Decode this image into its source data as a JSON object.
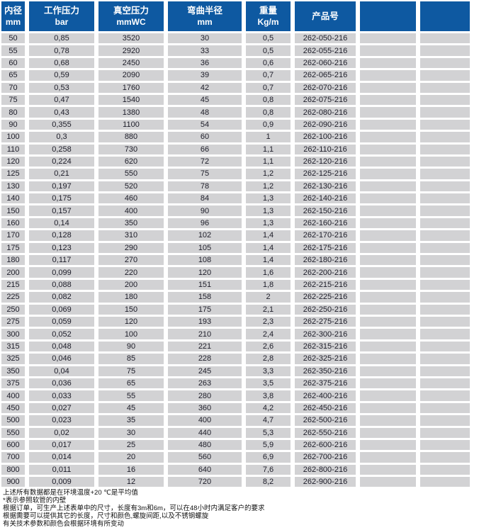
{
  "colors": {
    "header_bg": "#0e59a1",
    "row_bg": "#d2d2d4",
    "header_text": "#ffffff",
    "body_text": "#1c1c28"
  },
  "table": {
    "columns": [
      {
        "line1": "内径",
        "line2": "mm"
      },
      {
        "line1": "工作压力",
        "line2": "bar"
      },
      {
        "line1": "真空压力",
        "line2": "mmWC"
      },
      {
        "line1": "弯曲半径",
        "line2": "mm"
      },
      {
        "line1": "重量",
        "line2": "Kg/m"
      },
      {
        "line1": "产品号",
        "line2": ""
      },
      {
        "line1": "",
        "line2": ""
      },
      {
        "line1": "",
        "line2": ""
      }
    ],
    "rows": [
      [
        "50",
        "0,85",
        "3520",
        "30",
        "0,5",
        "262-050-216",
        "",
        ""
      ],
      [
        "55",
        "0,78",
        "2920",
        "33",
        "0,5",
        "262-055-216",
        "",
        ""
      ],
      [
        "60",
        "0,68",
        "2450",
        "36",
        "0,6",
        "262-060-216",
        "",
        ""
      ],
      [
        "65",
        "0,59",
        "2090",
        "39",
        "0,7",
        "262-065-216",
        "",
        ""
      ],
      [
        "70",
        "0,53",
        "1760",
        "42",
        "0,7",
        "262-070-216",
        "",
        ""
      ],
      [
        "75",
        "0,47",
        "1540",
        "45",
        "0,8",
        "262-075-216",
        "",
        ""
      ],
      [
        "80",
        "0,43",
        "1380",
        "48",
        "0,8",
        "262-080-216",
        "",
        ""
      ],
      [
        "90",
        "0,355",
        "1100",
        "54",
        "0,9",
        "262-090-216",
        "",
        ""
      ],
      [
        "100",
        "0,3",
        "880",
        "60",
        "1",
        "262-100-216",
        "",
        ""
      ],
      [
        "110",
        "0,258",
        "730",
        "66",
        "1,1",
        "262-110-216",
        "",
        ""
      ],
      [
        "120",
        "0,224",
        "620",
        "72",
        "1,1",
        "262-120-216",
        "",
        ""
      ],
      [
        "125",
        "0,21",
        "550",
        "75",
        "1,2",
        "262-125-216",
        "",
        ""
      ],
      [
        "130",
        "0,197",
        "520",
        "78",
        "1,2",
        "262-130-216",
        "",
        ""
      ],
      [
        "140",
        "0,175",
        "460",
        "84",
        "1,3",
        "262-140-216",
        "",
        ""
      ],
      [
        "150",
        "0,157",
        "400",
        "90",
        "1,3",
        "262-150-216",
        "",
        ""
      ],
      [
        "160",
        "0,14",
        "350",
        "96",
        "1,3",
        "262-160-216",
        "",
        ""
      ],
      [
        "170",
        "0,128",
        "310",
        "102",
        "1,4",
        "262-170-216",
        "",
        ""
      ],
      [
        "175",
        "0,123",
        "290",
        "105",
        "1,4",
        "262-175-216",
        "",
        ""
      ],
      [
        "180",
        "0,117",
        "270",
        "108",
        "1,4",
        "262-180-216",
        "",
        ""
      ],
      [
        "200",
        "0,099",
        "220",
        "120",
        "1,6",
        "262-200-216",
        "",
        ""
      ],
      [
        "215",
        "0,088",
        "200",
        "151",
        "1,8",
        "262-215-216",
        "",
        ""
      ],
      [
        "225",
        "0,082",
        "180",
        "158",
        "2",
        "262-225-216",
        "",
        ""
      ],
      [
        "250",
        "0,069",
        "150",
        "175",
        "2,1",
        "262-250-216",
        "",
        ""
      ],
      [
        "275",
        "0,059",
        "120",
        "193",
        "2,3",
        "262-275-216",
        "",
        ""
      ],
      [
        "300",
        "0,052",
        "100",
        "210",
        "2,4",
        "262-300-216",
        "",
        ""
      ],
      [
        "315",
        "0,048",
        "90",
        "221",
        "2,6",
        "262-315-216",
        "",
        ""
      ],
      [
        "325",
        "0,046",
        "85",
        "228",
        "2,8",
        "262-325-216",
        "",
        ""
      ],
      [
        "350",
        "0,04",
        "75",
        "245",
        "3,3",
        "262-350-216",
        "",
        ""
      ],
      [
        "375",
        "0,036",
        "65",
        "263",
        "3,5",
        "262-375-216",
        "",
        ""
      ],
      [
        "400",
        "0,033",
        "55",
        "280",
        "3,8",
        "262-400-216",
        "",
        ""
      ],
      [
        "450",
        "0,027",
        "45",
        "360",
        "4,2",
        "262-450-216",
        "",
        ""
      ],
      [
        "500",
        "0,023",
        "35",
        "400",
        "4,7",
        "262-500-216",
        "",
        ""
      ],
      [
        "550",
        "0,02",
        "30",
        "440",
        "5,3",
        "262-550-216",
        "",
        ""
      ],
      [
        "600",
        "0,017",
        "25",
        "480",
        "5,9",
        "262-600-216",
        "",
        ""
      ],
      [
        "700",
        "0,014",
        "20",
        "560",
        "6,9",
        "262-700-216",
        "",
        ""
      ],
      [
        "800",
        "0,011",
        "16",
        "640",
        "7,6",
        "262-800-216",
        "",
        ""
      ],
      [
        "900",
        "0,009",
        "12",
        "720",
        "8,2",
        "262-900-216",
        "",
        ""
      ]
    ]
  },
  "notes": [
    "上述所有数据都是在环境温度+20 ℃是平均值",
    "*表示参照软管的内壁",
    "根据订单，可生产上述表单中的尺寸，长度有3m和6m，可以在48小时内满足客户的要求",
    "根据需要可以提供其它的长度，尺寸和颜色,螺旋间距,以及不锈钢螺旋",
    "有关技术参数和颜色会根据环境有所变动"
  ]
}
